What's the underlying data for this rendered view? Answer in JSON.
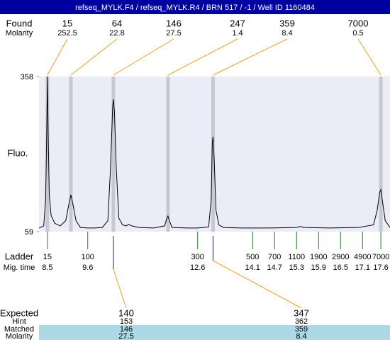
{
  "header": {
    "title": "refseq_MYLK.F4 / refseq_MYLK.R4 / BRN 517 / -1 / Well ID 1160484"
  },
  "found": {
    "label": "Found",
    "molarity_label": "Molarity",
    "peaks": [
      {
        "size": 15,
        "molarity": 252.5,
        "time": 8.5
      },
      {
        "size": 64,
        "molarity": 22.8,
        "time": 9.14
      },
      {
        "size": 146,
        "molarity": 27.5,
        "time": 10.3
      },
      {
        "size": 247,
        "molarity": 1.4,
        "time": 11.79
      },
      {
        "size": 359,
        "molarity": 8.4,
        "time": 13.02
      },
      {
        "size": 7000,
        "molarity": 0.5,
        "time": 17.6
      }
    ]
  },
  "chart_data": {
    "type": "line",
    "y_label": "Fluo.",
    "color": "#000000",
    "x": [
      8.27,
      8.4,
      8.45,
      8.48,
      8.5,
      8.52,
      8.55,
      8.6,
      8.7,
      8.85,
      9.0,
      9.08,
      9.14,
      9.2,
      9.28,
      9.4,
      9.6,
      9.8,
      10.0,
      10.15,
      10.22,
      10.28,
      10.3,
      10.33,
      10.38,
      10.45,
      10.55,
      10.65,
      10.72,
      10.8,
      11.0,
      11.4,
      11.7,
      11.76,
      11.79,
      11.83,
      11.9,
      12.3,
      12.6,
      12.9,
      12.97,
      13.0,
      13.02,
      13.05,
      13.1,
      13.18,
      13.3,
      13.8,
      14.5,
      15.3,
      15.4,
      15.5,
      16.2,
      17.0,
      17.4,
      17.5,
      17.57,
      17.6,
      17.64,
      17.72,
      17.85
    ],
    "values": [
      66,
      70,
      120,
      250,
      358,
      250,
      130,
      90,
      75,
      70,
      80,
      110,
      130,
      110,
      80,
      67,
      66,
      66,
      67,
      80,
      180,
      300,
      314,
      290,
      180,
      85,
      72,
      70,
      73,
      70,
      67,
      66,
      70,
      85,
      89,
      80,
      67,
      66,
      66,
      68,
      120,
      230,
      242,
      200,
      100,
      72,
      67,
      66,
      66,
      67,
      69,
      67,
      66,
      67,
      72,
      100,
      135,
      140,
      120,
      80,
      67
    ],
    "xlim": [
      8.27,
      17.85
    ],
    "ylim": [
      59,
      358
    ],
    "yticks": [
      59,
      358
    ]
  },
  "ladder": {
    "label": "Ladder",
    "time_label": "Mig. time",
    "bands": [
      {
        "size": 15,
        "time": 8.5
      },
      {
        "size": 100,
        "time": 9.6
      },
      {
        "size": 300,
        "time": 12.6
      },
      {
        "size": 500,
        "time": 14.1
      },
      {
        "size": 700,
        "time": 14.7
      },
      {
        "size": 1100,
        "time": 15.3
      },
      {
        "size": 1900,
        "time": 15.9
      },
      {
        "size": 2900,
        "time": 16.5
      },
      {
        "size": 4900,
        "time": 17.1
      },
      {
        "size": 7000,
        "time": 17.6
      }
    ]
  },
  "expected": {
    "label": "Expected",
    "hint_label": "Hint",
    "matched_label": "Matched",
    "molarity_label": "Molarity",
    "items": [
      {
        "expected": 140,
        "hint": 153,
        "matched": 146,
        "molarity": 27.5
      },
      {
        "expected": 347,
        "hint": 362,
        "matched": 359,
        "molarity": 8.4
      }
    ]
  }
}
